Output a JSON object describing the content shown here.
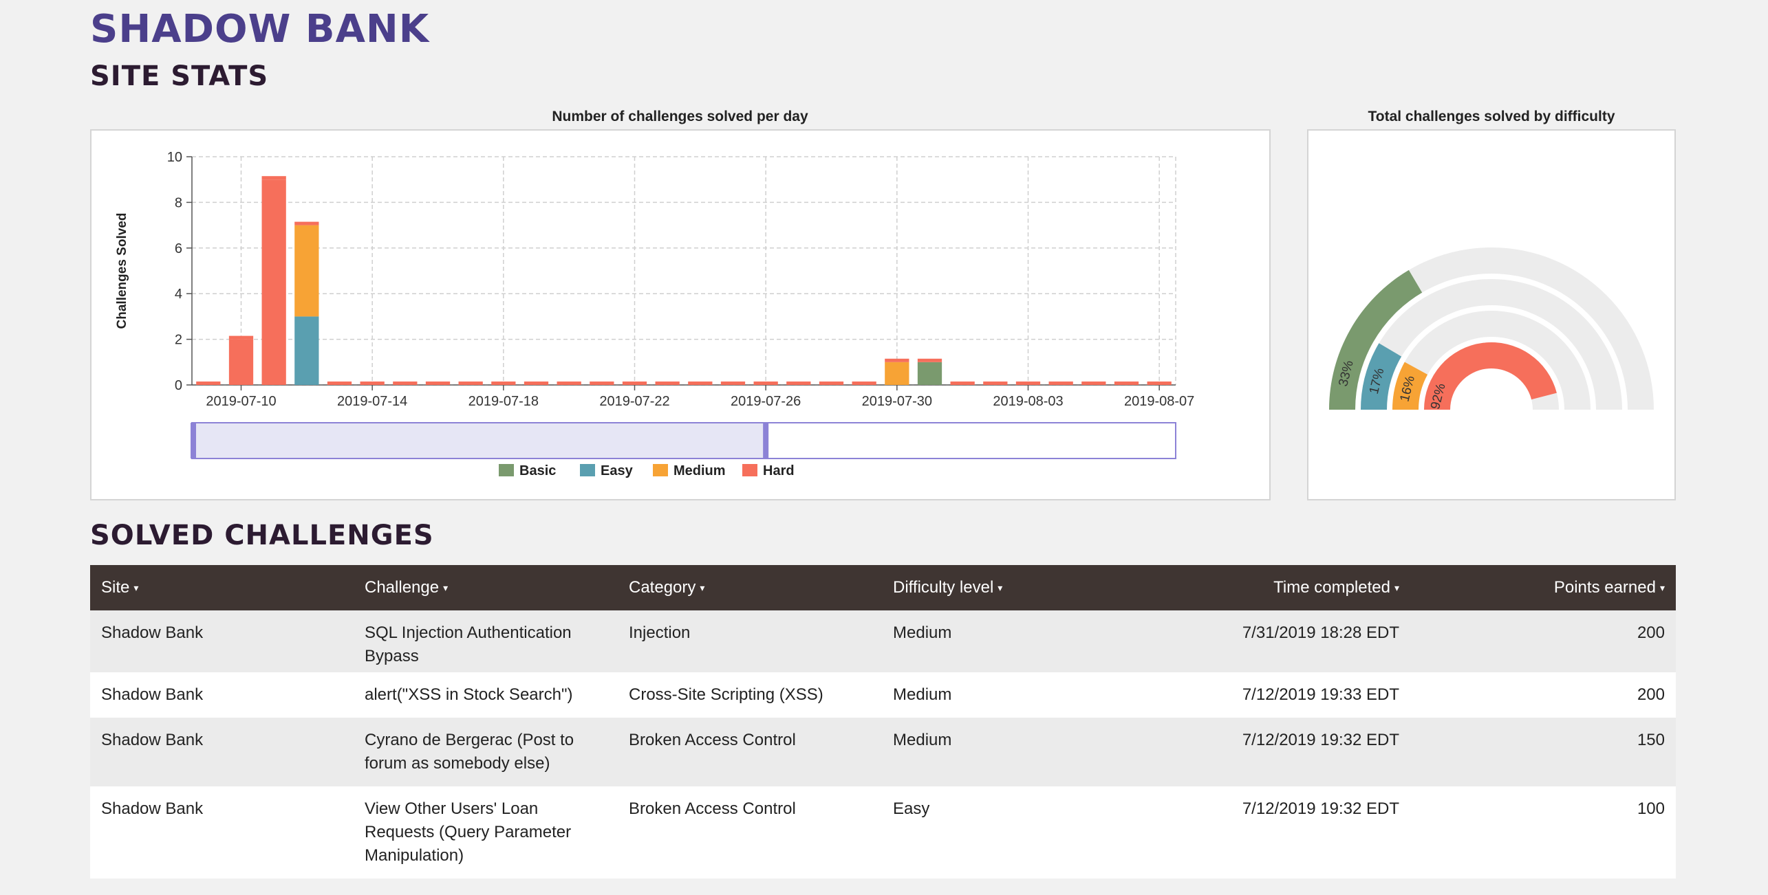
{
  "header": {
    "brand": "SHADOW BANK",
    "site_stats_heading": "SITE STATS",
    "solved_heading": "SOLVED CHALLENGES"
  },
  "colors": {
    "basic": "#7a9a6e",
    "easy": "#5a9fb0",
    "medium": "#f7a335",
    "hard": "#f66f5b",
    "brand": "#4b3f8b",
    "table_header": "#3f3532"
  },
  "chart_data": [
    {
      "type": "bar",
      "stacked": true,
      "title": "Number of challenges solved per day",
      "ylabel": "Challenges Solved",
      "xlabel": "",
      "ylim": [
        0,
        10
      ],
      "yticks": [
        0,
        2,
        4,
        6,
        8,
        10
      ],
      "grid": true,
      "legend_position": "bottom",
      "categories": [
        "2019-07-09",
        "2019-07-10",
        "2019-07-11",
        "2019-07-12",
        "2019-07-13",
        "2019-07-14",
        "2019-07-15",
        "2019-07-16",
        "2019-07-17",
        "2019-07-18",
        "2019-07-19",
        "2019-07-20",
        "2019-07-21",
        "2019-07-22",
        "2019-07-23",
        "2019-07-24",
        "2019-07-25",
        "2019-07-26",
        "2019-07-27",
        "2019-07-28",
        "2019-07-29",
        "2019-07-30",
        "2019-07-31",
        "2019-08-01",
        "2019-08-02",
        "2019-08-03",
        "2019-08-04",
        "2019-08-05",
        "2019-08-06",
        "2019-08-07"
      ],
      "xtick_labels": [
        "2019-07-10",
        "2019-07-14",
        "2019-07-18",
        "2019-07-22",
        "2019-07-26",
        "2019-07-30",
        "2019-08-03",
        "2019-08-07"
      ],
      "series": [
        {
          "name": "Basic",
          "color": "#7a9a6e",
          "values": [
            0,
            0,
            0,
            0,
            0,
            0,
            0,
            0,
            0,
            0,
            0,
            0,
            0,
            0,
            0,
            0,
            0,
            0,
            0,
            0,
            0,
            0,
            1,
            0,
            0,
            0,
            0,
            0,
            0,
            0
          ]
        },
        {
          "name": "Easy",
          "color": "#5a9fb0",
          "values": [
            0,
            0,
            0,
            3,
            0,
            0,
            0,
            0,
            0,
            0,
            0,
            0,
            0,
            0,
            0,
            0,
            0,
            0,
            0,
            0,
            0,
            0,
            0,
            0,
            0,
            0,
            0,
            0,
            0,
            0
          ]
        },
        {
          "name": "Medium",
          "color": "#f7a335",
          "values": [
            0,
            0,
            0,
            4,
            0,
            0,
            0,
            0,
            0,
            0,
            0,
            0,
            0,
            0,
            0,
            0,
            0,
            0,
            0,
            0,
            0,
            1,
            0,
            0,
            0,
            0,
            0,
            0,
            0,
            0
          ]
        },
        {
          "name": "Hard",
          "color": "#f66f5b",
          "values": [
            0,
            2,
            9,
            0,
            0,
            0,
            0,
            0,
            0,
            0,
            0,
            0,
            0,
            0,
            0,
            0,
            0,
            0,
            0,
            0,
            0,
            0,
            0,
            0,
            0,
            0,
            0,
            0,
            0,
            0
          ]
        }
      ],
      "brush_range": [
        "2019-07-09",
        "2019-07-26"
      ]
    },
    {
      "type": "pie",
      "title": "Total challenges solved by difficulty",
      "rings": [
        {
          "name": "Basic",
          "percent": 33,
          "label": "33%",
          "color": "#7a9a6e"
        },
        {
          "name": "Easy",
          "percent": 17,
          "label": "17%",
          "color": "#5a9fb0"
        },
        {
          "name": "Medium",
          "percent": 16,
          "label": "16%",
          "color": "#f7a335"
        },
        {
          "name": "Hard",
          "percent": 92,
          "label": "92%",
          "color": "#f66f5b"
        }
      ]
    }
  ],
  "table": {
    "columns": [
      {
        "label": "Site",
        "align": "left"
      },
      {
        "label": "Challenge",
        "align": "left"
      },
      {
        "label": "Category",
        "align": "left"
      },
      {
        "label": "Difficulty level",
        "align": "left"
      },
      {
        "label": "Time completed",
        "align": "right"
      },
      {
        "label": "Points earned",
        "align": "right"
      }
    ],
    "rows": [
      [
        "Shadow Bank",
        "SQL Injection Authentication Bypass",
        "Injection",
        "Medium",
        "7/31/2019 18:28 EDT",
        "200"
      ],
      [
        "Shadow Bank",
        "alert(\"XSS in Stock Search\")",
        "Cross-Site Scripting (XSS)",
        "Medium",
        "7/12/2019 19:33 EDT",
        "200"
      ],
      [
        "Shadow Bank",
        "Cyrano de Bergerac (Post to forum as somebody else)",
        "Broken Access Control",
        "Medium",
        "7/12/2019 19:32 EDT",
        "150"
      ],
      [
        "Shadow Bank",
        "View Other Users' Loan Requests (Query Parameter Manipulation)",
        "Broken Access Control",
        "Easy",
        "7/12/2019 19:32 EDT",
        "100"
      ]
    ]
  }
}
